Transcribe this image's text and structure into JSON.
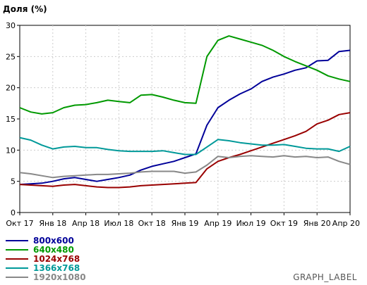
{
  "chart_data": {
    "type": "line",
    "title": "",
    "ylabel": "Доля (%)",
    "xlabel": "",
    "ylim": [
      0,
      30
    ],
    "yticks": [
      "0",
      "5",
      "10",
      "15",
      "20",
      "25",
      "30"
    ],
    "xticks": [
      "Окт 17",
      "Янв 18",
      "Апр 18",
      "Июл 18",
      "Окт 18",
      "Янв 19",
      "Апр 19",
      "Июл 19",
      "Окт 19",
      "Янв 20",
      "Апр 20"
    ],
    "grid": true,
    "legend_position": "bottom-left",
    "x_count": 31,
    "series": [
      {
        "name": "800x600",
        "color": "#000099",
        "values": [
          4.5,
          4.6,
          4.7,
          5.0,
          5.4,
          5.6,
          5.3,
          5.0,
          5.3,
          5.6,
          6.0,
          6.8,
          7.4,
          7.8,
          8.2,
          8.8,
          9.4,
          14.0,
          16.8,
          18.0,
          19.0,
          19.8,
          21.0,
          21.7,
          22.2,
          22.8,
          23.2,
          24.3,
          24.4,
          25.8,
          26.0
        ]
      },
      {
        "name": "640x480",
        "color": "#009900",
        "values": [
          16.8,
          16.1,
          15.8,
          16.0,
          16.8,
          17.2,
          17.3,
          17.6,
          18.0,
          17.8,
          17.6,
          18.8,
          18.9,
          18.5,
          18.0,
          17.6,
          17.5,
          25.0,
          27.6,
          28.3,
          27.8,
          27.3,
          26.8,
          26.0,
          25.0,
          24.2,
          23.5,
          22.8,
          21.9,
          21.4,
          21.0
        ]
      },
      {
        "name": "1024x768",
        "color": "#990000",
        "values": [
          4.5,
          4.4,
          4.3,
          4.2,
          4.4,
          4.5,
          4.3,
          4.1,
          4.0,
          4.0,
          4.1,
          4.3,
          4.4,
          4.5,
          4.6,
          4.7,
          4.8,
          7.0,
          8.2,
          8.8,
          9.3,
          9.9,
          10.5,
          11.1,
          11.7,
          12.3,
          13.0,
          14.2,
          14.8,
          15.7,
          16.0
        ]
      },
      {
        "name": "1366x768",
        "color": "#009999",
        "values": [
          12.0,
          11.6,
          10.8,
          10.2,
          10.5,
          10.6,
          10.4,
          10.4,
          10.1,
          9.9,
          9.8,
          9.8,
          9.8,
          9.9,
          9.6,
          9.3,
          9.3,
          10.5,
          11.7,
          11.5,
          11.2,
          11.0,
          10.8,
          10.8,
          10.9,
          10.6,
          10.3,
          10.2,
          10.2,
          9.8,
          10.6
        ]
      },
      {
        "name": "1920x1080",
        "color": "#888888",
        "values": [
          6.4,
          6.2,
          5.9,
          5.6,
          5.8,
          5.9,
          6.0,
          6.1,
          6.1,
          6.2,
          6.3,
          6.5,
          6.6,
          6.6,
          6.6,
          6.3,
          6.5,
          7.6,
          9.0,
          8.8,
          9.0,
          9.1,
          9.0,
          8.9,
          9.1,
          8.9,
          9.0,
          8.8,
          8.9,
          8.2,
          7.7
        ]
      }
    ]
  },
  "footer_label": "GRAPH_LABEL"
}
